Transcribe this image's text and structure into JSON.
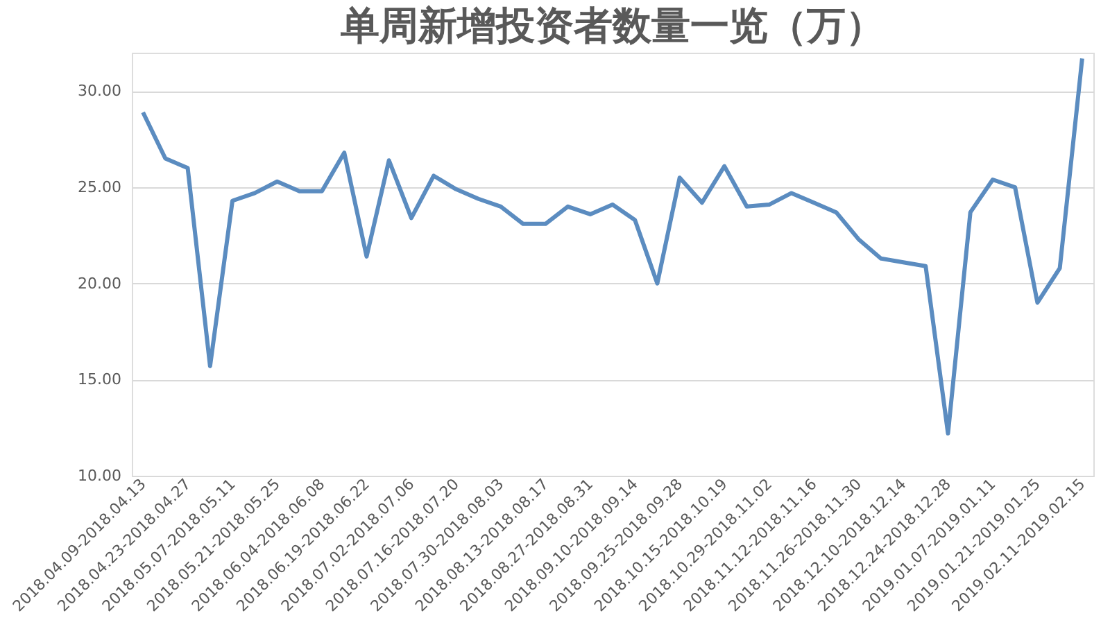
{
  "chart_data": {
    "type": "line",
    "title": "单周新增投资者数量一览（万）",
    "categories": [
      "2018.04.09-2018.04.13",
      null,
      "2018.04.23-2018.04.27",
      null,
      "2018.05.07-2018.05.11",
      null,
      "2018.05.21-2018.05.25",
      null,
      "2018.06.04-2018.06.08",
      null,
      "2018.06.19-2018.06.22",
      null,
      "2018.07.02-2018.07.06",
      null,
      "2018.07.16-2018.07.20",
      null,
      "2018.07.30-2018.08.03",
      null,
      "2018.08.13-2018.08.17",
      null,
      "2018.08.27-2018.08.31",
      null,
      "2018.09.10-2018.09.14",
      null,
      "2018.09.25-2018.09.28",
      null,
      "2018.10.15-2018.10.19",
      null,
      "2018.10.29-2018.11.02",
      null,
      "2018.11.12-2018.11.16",
      null,
      "2018.11.26-2018.11.30",
      null,
      "2018.12.10-2018.12.14",
      null,
      "2018.12.24-2018.12.28",
      null,
      "2019.01.07-2019.01.11",
      null,
      "2019.01.21-2019.01.25",
      null,
      "2019.02.11-2019.02.15"
    ],
    "series": [
      {
        "color": "#5b8cc0",
        "values": [
          28.9,
          26.5,
          26.0,
          15.7,
          24.3,
          24.7,
          25.3,
          24.8,
          24.8,
          26.8,
          21.4,
          26.4,
          23.4,
          25.6,
          24.9,
          24.4,
          24.0,
          23.1,
          23.1,
          24.0,
          23.6,
          24.1,
          23.3,
          20.0,
          25.5,
          24.2,
          26.1,
          24.0,
          24.1,
          24.7,
          24.2,
          23.7,
          22.3,
          21.3,
          21.1,
          20.9,
          12.2,
          23.7,
          25.4,
          25.0,
          19.0,
          20.8,
          31.7
        ]
      }
    ],
    "ylim": [
      10,
      32
    ],
    "yticks": [
      {
        "value": 10,
        "label": "10.00"
      },
      {
        "value": 15,
        "label": "15.00"
      },
      {
        "value": 20,
        "label": "20.00"
      },
      {
        "value": 25,
        "label": "25.00"
      },
      {
        "value": 30,
        "label": "30.00"
      }
    ],
    "grid": "y",
    "marker": "none",
    "line_style": "solid"
  }
}
